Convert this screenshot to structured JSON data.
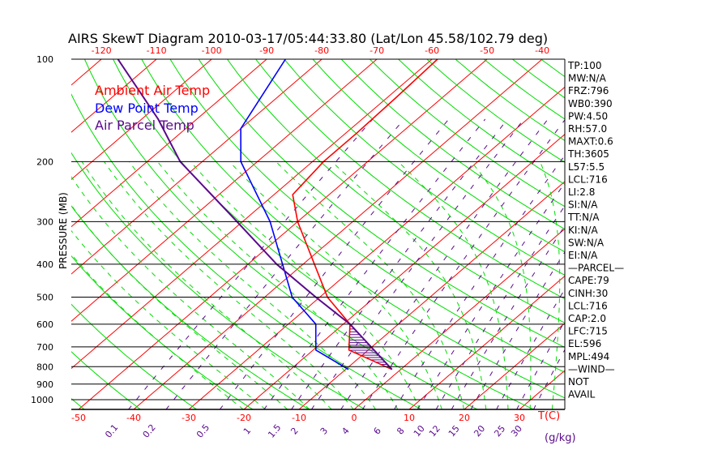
{
  "chart_data": {
    "type": "line",
    "title": "AIRS SkewT Diagram 2010-03-17/05:44:33.80 (Lat/Lon 45.58/102.79 deg)",
    "ylabel": "PRESSURE (MB)",
    "xlabel": "T(C)",
    "mixing_ratio_unit": "(g/kg)",
    "pressure_ticks": [
      100,
      200,
      300,
      400,
      500,
      600,
      700,
      800,
      900,
      1000
    ],
    "top_temp_ticks": [
      -120,
      -110,
      -100,
      -90,
      -80,
      -70,
      -60,
      -50,
      -40
    ],
    "bottom_temp_ticks": [
      -50,
      -40,
      -30,
      -20,
      -10,
      0,
      10,
      20,
      30
    ],
    "mixing_ratio_ticks": [
      0.1,
      0.2,
      0.5,
      1,
      1.5,
      2,
      3,
      4,
      6,
      8,
      10,
      12,
      15,
      20,
      25,
      30
    ],
    "legend": [
      {
        "label": "Ambient Air Temp",
        "color": "#ff0000"
      },
      {
        "label": "Dew Point Temp",
        "color": "#0000ff"
      },
      {
        "label": "Air Parcel Temp",
        "color": "#5a0a8c"
      }
    ],
    "series": [
      {
        "name": "Ambient Air Temp",
        "color": "#ff0000",
        "points": [
          [
            815,
            -1.6
          ],
          [
            715,
            -13.5
          ],
          [
            600,
            -18.8
          ],
          [
            500,
            -28.6
          ],
          [
            300,
            -50
          ],
          [
            250,
            -56.6
          ],
          [
            200,
            -58
          ],
          [
            165,
            -58
          ],
          [
            130,
            -58.4
          ],
          [
            100,
            -59
          ]
        ]
      },
      {
        "name": "Dew Point Temp",
        "color": "#0000ff",
        "points": [
          [
            815,
            -9.5
          ],
          [
            715,
            -19.5
          ],
          [
            600,
            -25
          ],
          [
            500,
            -35
          ],
          [
            300,
            -55
          ],
          [
            200,
            -73
          ],
          [
            160,
            -80
          ],
          [
            100,
            -86.6
          ]
        ]
      },
      {
        "name": "Air Parcel Temp",
        "color": "#5a0a8c",
        "points": [
          [
            815,
            -1.6
          ],
          [
            600,
            -18.8
          ],
          [
            500,
            -30.7
          ],
          [
            400,
            -44.8
          ],
          [
            300,
            -61
          ],
          [
            200,
            -84
          ],
          [
            150,
            -97
          ],
          [
            100,
            -117
          ]
        ]
      }
    ],
    "ylim": [
      100,
      1070
    ],
    "grid": true
  },
  "indices": [
    "TP:100",
    "MW:N/A",
    "FRZ:796",
    "WB0:390",
    "PW:4.50",
    "RH:57.0",
    "MAXT:0.6",
    "TH:3605",
    "L57:5.5",
    "LCL:716",
    "LI:2.8",
    "SI:N/A",
    "TT:N/A",
    "KI:N/A",
    "SW:N/A",
    "EI:N/A",
    "—PARCEL—",
    "CAPE:79",
    "CINH:30",
    "LCL:716",
    "CAP:2.0",
    "LFC:715",
    "EL:596",
    "MPL:494",
    "—WIND—",
    "NOT",
    "AVAIL"
  ]
}
